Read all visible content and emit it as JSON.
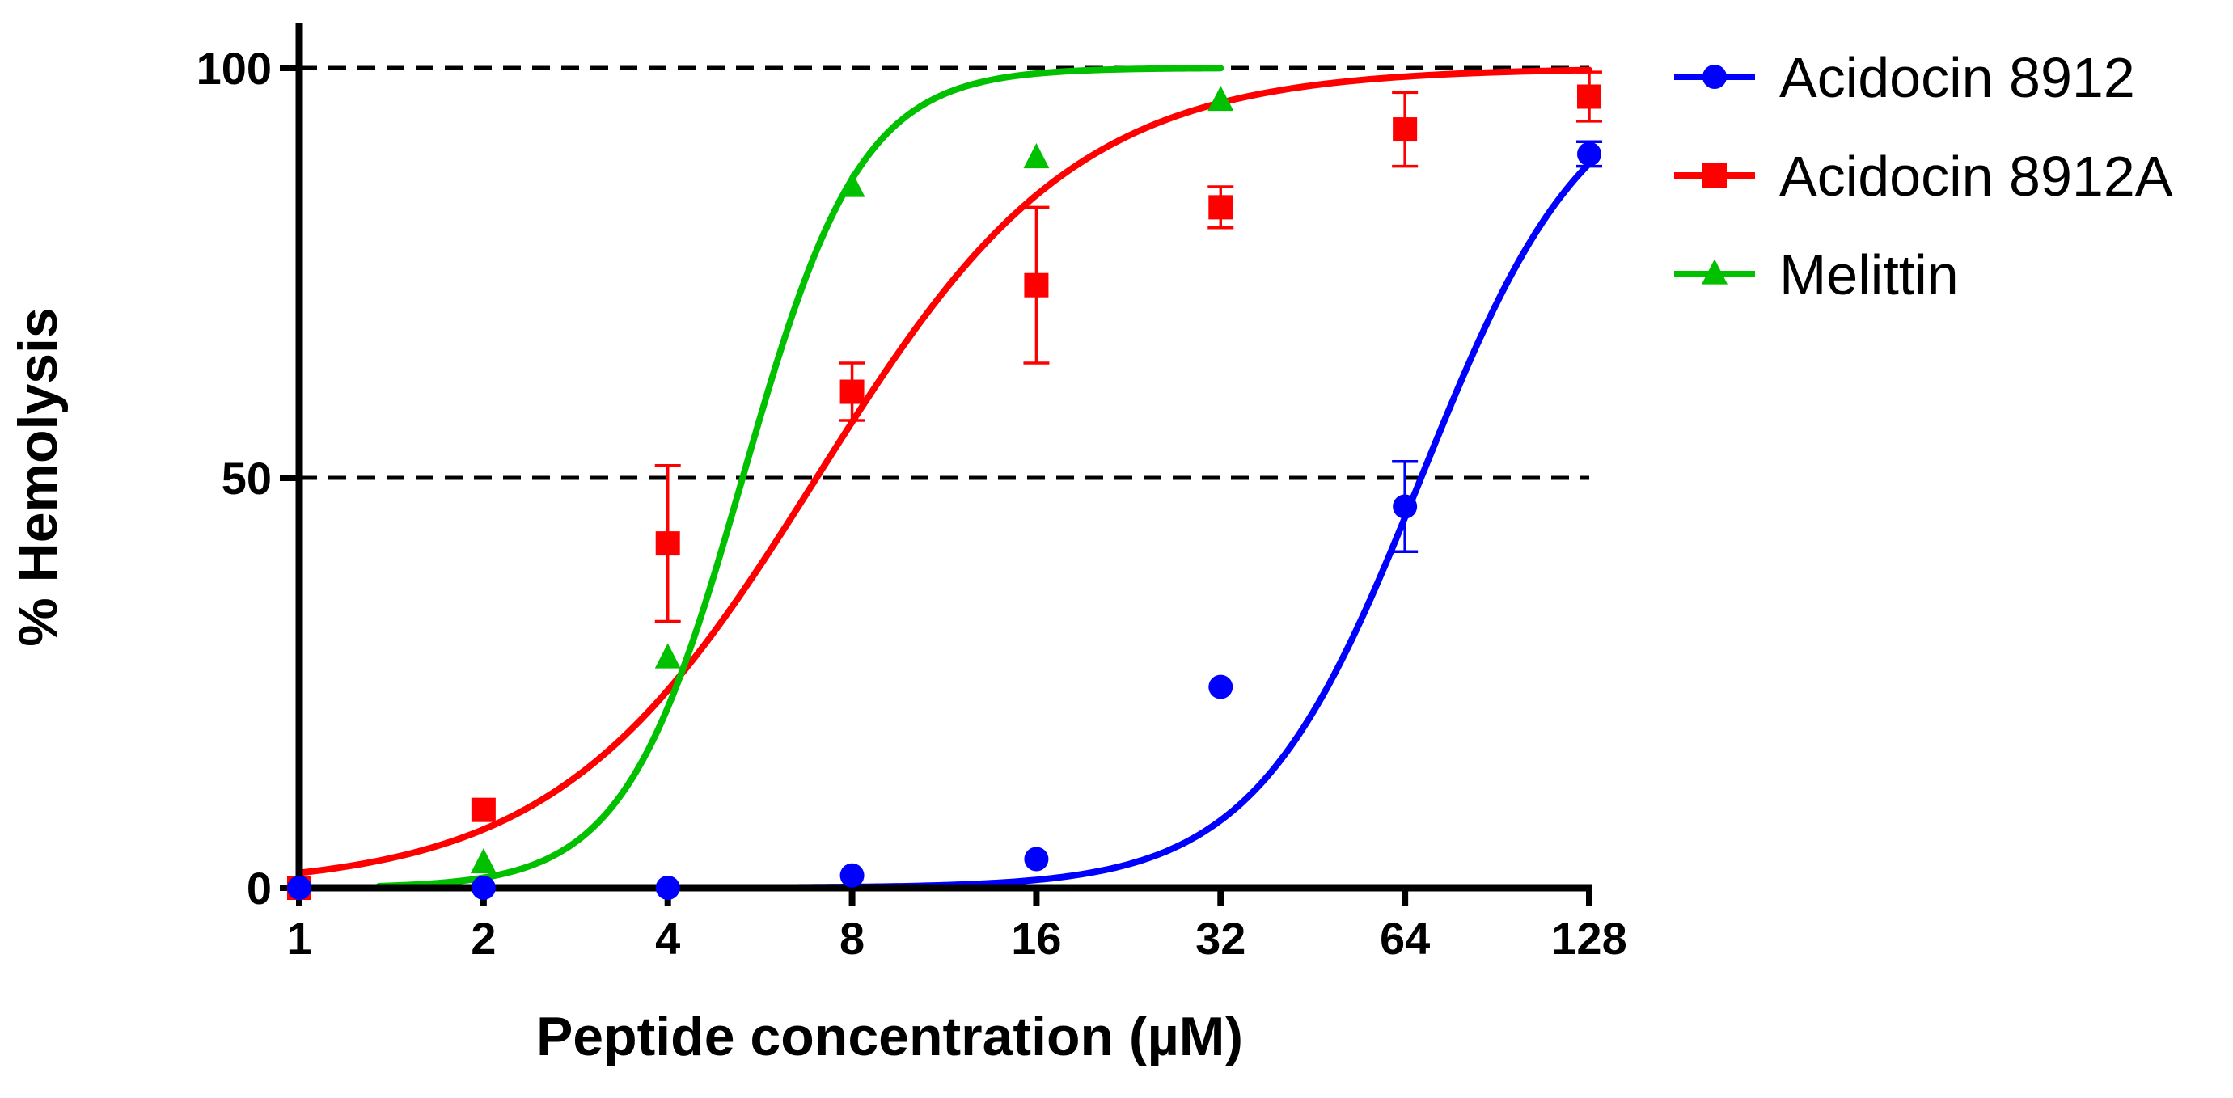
{
  "chart_data": {
    "type": "scatter",
    "title": "",
    "xlabel": "Peptide concentration (µM)",
    "ylabel": "% Hemolysis",
    "xscale": "log2",
    "xlim": [
      1,
      128
    ],
    "ylim": [
      0,
      100
    ],
    "xticks": [
      {
        "value": 1,
        "label": "1"
      },
      {
        "value": 2,
        "label": "2"
      },
      {
        "value": 4,
        "label": "4"
      },
      {
        "value": 8,
        "label": "8"
      },
      {
        "value": 16,
        "label": "16"
      },
      {
        "value": 32,
        "label": "32"
      },
      {
        "value": 64,
        "label": "64"
      },
      {
        "value": 128,
        "label": "128"
      }
    ],
    "yticks": [
      {
        "value": 0,
        "label": "0"
      },
      {
        "value": 50,
        "label": "50"
      },
      {
        "value": 100,
        "label": "100"
      }
    ],
    "reference_lines": [
      {
        "y": 100,
        "style": "dashed",
        "color": "#000000"
      },
      {
        "y": 50,
        "style": "dashed",
        "color": "#000000"
      }
    ],
    "legend_position": "top-right",
    "series": [
      {
        "name": "Acidocin 8912",
        "color": "#0000FF",
        "marker": "circle",
        "points": [
          {
            "x": 1,
            "y": 0
          },
          {
            "x": 2,
            "y": 0
          },
          {
            "x": 4,
            "y": 0
          },
          {
            "x": 8,
            "y": 1.5
          },
          {
            "x": 16,
            "y": 3.5
          },
          {
            "x": 32,
            "y": 24.5
          },
          {
            "x": 64,
            "y": 46.5,
            "err": 5.5
          },
          {
            "x": 128,
            "y": 89.5,
            "err": 1.5
          }
        ],
        "fit": {
          "ec50": 68,
          "hill": 3.2,
          "x_start": 3.6,
          "x_end": 128
        }
      },
      {
        "name": "Acidocin 8912A",
        "color": "#FF0000",
        "marker": "square",
        "points": [
          {
            "x": 1,
            "y": 0
          },
          {
            "x": 2,
            "y": 9.5
          },
          {
            "x": 4,
            "y": 42,
            "err": 9.5
          },
          {
            "x": 8,
            "y": 60.5,
            "err": 3.5
          },
          {
            "x": 16,
            "y": 73.5,
            "err": 9.5
          },
          {
            "x": 32,
            "y": 83,
            "err": 2.5
          },
          {
            "x": 64,
            "y": 92.5,
            "err": 4.5
          },
          {
            "x": 128,
            "y": 96.5,
            "err": 3
          }
        ],
        "fit": {
          "ec50": 7,
          "hill": 2.05,
          "x_start": 1,
          "x_end": 128
        }
      },
      {
        "name": "Melittin",
        "color": "#00C000",
        "marker": "triangle",
        "points": [
          {
            "x": 2,
            "y": 3
          },
          {
            "x": 4,
            "y": 28
          },
          {
            "x": 8,
            "y": 85.5
          },
          {
            "x": 16,
            "y": 89
          },
          {
            "x": 32,
            "y": 96
          }
        ],
        "fit": {
          "ec50": 5.3,
          "hill": 4.5,
          "x_start": 1.35,
          "x_end": 32
        }
      }
    ]
  }
}
